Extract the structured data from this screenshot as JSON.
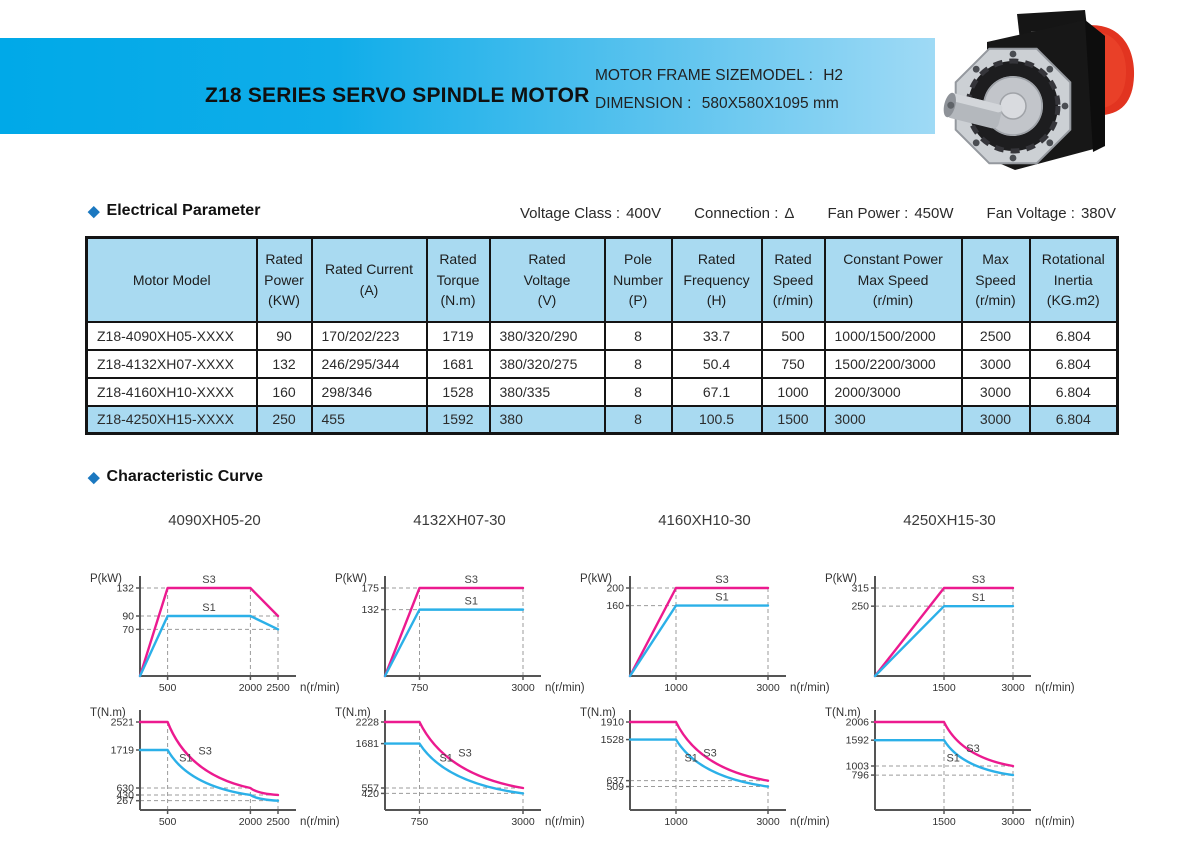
{
  "header": {
    "title": "Z18 SERIES SERVO SPINDLE MOTOR",
    "frame_label": "MOTOR FRAME SIZEMODEL :",
    "frame_value": "H2",
    "dimension_label": "DIMENSION :",
    "dimension_value": "580X580X1095 mm"
  },
  "electrical": {
    "section_title": "Electrical Parameter",
    "params": [
      {
        "label": "Voltage Class :",
        "value": "400V"
      },
      {
        "label": "Connection :",
        "value": "Δ"
      },
      {
        "label": "Fan Power :",
        "value": "450W"
      },
      {
        "label": "Fan Voltage :",
        "value": "380V"
      }
    ],
    "table": {
      "headers": [
        "Motor Model",
        "Rated\nPower\n(KW)",
        "Rated  Current\n(A)",
        "Rated\nTorque\n(N.m)",
        "Rated\nVoltage\n(V)",
        "Pole\nNumber\n(P)",
        "Rated\nFrequency\n(H)",
        "Rated\nSpeed\n(r/min)",
        "Constant Power\nMax Speed\n(r/min)",
        "Max\nSpeed\n(r/min)",
        "Rotational\nInertia\n(KG.m2)"
      ],
      "rows": [
        [
          "Z18-4090XH05-XXXX",
          "90",
          "170/202/223",
          "1719",
          "380/320/290",
          "8",
          "33.7",
          "500",
          "1000/1500/2000",
          "2500",
          "6.804"
        ],
        [
          "Z18-4132XH07-XXXX",
          "132",
          "246/295/344",
          "1681",
          "380/320/275",
          "8",
          "50.4",
          "750",
          "1500/2200/3000",
          "3000",
          "6.804"
        ],
        [
          "Z18-4160XH10-XXXX",
          "160",
          "298/346",
          "1528",
          "380/335",
          "8",
          "67.1",
          "1000",
          "2000/3000",
          "3000",
          "6.804"
        ],
        [
          "Z18-4250XH15-XXXX",
          "250",
          "455",
          "1592",
          "380",
          "8",
          "100.5",
          "1500",
          "3000",
          "3000",
          "6.804"
        ]
      ],
      "highlight_row_index": 3
    }
  },
  "curves": {
    "section_title": "Characteristic Curve",
    "models": [
      "4090XH05-20",
      "4132XH07-30",
      "4160XH10-30",
      "4250XH15-30"
    ]
  },
  "colors": {
    "magenta": "#ec1a8f",
    "cyan": "#2bb0e8",
    "band_blue": "#00a9e8",
    "table_blue": "#a9daf1",
    "diamond_blue": "#1b78c0",
    "motor_red": "#e23420"
  },
  "chart_data": [
    {
      "id": "power-4090",
      "type": "line",
      "model": "4090XH05-20",
      "ylabel": "P(kW)",
      "xlabel": "n(r/min)",
      "yticks": [
        132,
        90,
        70
      ],
      "xticks": [
        500,
        2000,
        2500
      ],
      "ymax": 132,
      "xmax": 2500,
      "grid_h": [
        {
          "y": 132,
          "x2": 2000
        },
        {
          "y": 90,
          "x2": 2500
        },
        {
          "y": 70,
          "x2": 2500
        }
      ],
      "grid_v": [
        {
          "x": 500,
          "y2": 132
        },
        {
          "x": 2000,
          "y2": 132
        },
        {
          "x": 2500,
          "y2": 90
        }
      ],
      "series": [
        {
          "name": "S3",
          "color": "magenta",
          "points": [
            [
              0,
              0
            ],
            [
              500,
              132
            ],
            [
              2000,
              132
            ],
            [
              2500,
              90
            ]
          ],
          "curved": [],
          "label_at": [
            1250,
            132
          ]
        },
        {
          "name": "S1",
          "color": "cyan",
          "points": [
            [
              0,
              0
            ],
            [
              500,
              90
            ],
            [
              2000,
              90
            ],
            [
              2500,
              70
            ]
          ],
          "curved": [],
          "label_at": [
            1250,
            90
          ]
        }
      ]
    },
    {
      "id": "power-4132",
      "type": "line",
      "model": "4132XH07-30",
      "ylabel": "P(kW)",
      "xlabel": "n(r/min)",
      "yticks": [
        175,
        132
      ],
      "xticks": [
        750,
        3000
      ],
      "ymax": 175,
      "xmax": 3000,
      "grid_h": [
        {
          "y": 175,
          "x2": 3000
        },
        {
          "y": 132,
          "x2": 3000
        }
      ],
      "grid_v": [
        {
          "x": 750,
          "y2": 175
        },
        {
          "x": 3000,
          "y2": 175
        }
      ],
      "series": [
        {
          "name": "S3",
          "color": "magenta",
          "points": [
            [
              0,
              0
            ],
            [
              750,
              175
            ],
            [
              3000,
              175
            ]
          ],
          "curved": [],
          "label_at": [
            1875,
            175
          ]
        },
        {
          "name": "S1",
          "color": "cyan",
          "points": [
            [
              0,
              0
            ],
            [
              750,
              132
            ],
            [
              3000,
              132
            ]
          ],
          "curved": [],
          "label_at": [
            1875,
            132
          ]
        }
      ]
    },
    {
      "id": "power-4160",
      "type": "line",
      "model": "4160XH10-30",
      "ylabel": "P(kW)",
      "xlabel": "n(r/min)",
      "yticks": [
        200,
        160
      ],
      "xticks": [
        1000,
        3000
      ],
      "ymax": 200,
      "xmax": 3000,
      "grid_h": [
        {
          "y": 200,
          "x2": 3000
        },
        {
          "y": 160,
          "x2": 3000
        }
      ],
      "grid_v": [
        {
          "x": 1000,
          "y2": 200
        },
        {
          "x": 3000,
          "y2": 200
        }
      ],
      "series": [
        {
          "name": "S3",
          "color": "magenta",
          "points": [
            [
              0,
              0
            ],
            [
              1000,
              200
            ],
            [
              3000,
              200
            ]
          ],
          "curved": [],
          "label_at": [
            2000,
            200
          ]
        },
        {
          "name": "S1",
          "color": "cyan",
          "points": [
            [
              0,
              0
            ],
            [
              1000,
              160
            ],
            [
              3000,
              160
            ]
          ],
          "curved": [],
          "label_at": [
            2000,
            160
          ]
        }
      ]
    },
    {
      "id": "power-4250",
      "type": "line",
      "model": "4250XH15-30",
      "ylabel": "P(kW)",
      "xlabel": "n(r/min)",
      "yticks": [
        315,
        250
      ],
      "xticks": [
        1500,
        3000
      ],
      "ymax": 315,
      "xmax": 3000,
      "grid_h": [
        {
          "y": 315,
          "x2": 3000
        },
        {
          "y": 250,
          "x2": 3000
        }
      ],
      "grid_v": [
        {
          "x": 1500,
          "y2": 315
        },
        {
          "x": 3000,
          "y2": 315
        }
      ],
      "series": [
        {
          "name": "S3",
          "color": "magenta",
          "points": [
            [
              0,
              0
            ],
            [
              1500,
              315
            ],
            [
              3000,
              315
            ]
          ],
          "curved": [],
          "label_at": [
            2250,
            315
          ]
        },
        {
          "name": "S1",
          "color": "cyan",
          "points": [
            [
              0,
              0
            ],
            [
              1500,
              250
            ],
            [
              3000,
              250
            ]
          ],
          "curved": [],
          "label_at": [
            2250,
            250
          ]
        }
      ]
    },
    {
      "id": "torque-4090",
      "type": "line",
      "model": "4090XH05-20",
      "ylabel": "T(N.m)",
      "xlabel": "n(r/min)",
      "yticks": [
        2521,
        1719,
        630,
        430,
        267
      ],
      "xticks": [
        500,
        2000,
        2500
      ],
      "ymax": 2521,
      "xmax": 2500,
      "grid_h": [
        {
          "y": 630,
          "x2": 2000
        },
        {
          "y": 430,
          "x2": 2500
        },
        {
          "y": 267,
          "x2": 2500
        }
      ],
      "grid_v": [
        {
          "x": 500,
          "y2": 2521
        },
        {
          "x": 2000,
          "y2": 630
        },
        {
          "x": 2500,
          "y2": 430
        }
      ],
      "series": [
        {
          "name": "S3",
          "color": "magenta",
          "points": [
            [
              0,
              2521
            ],
            [
              500,
              2521
            ],
            [
              2000,
              630
            ],
            [
              2500,
              430
            ]
          ],
          "curved": [
            1,
            2
          ],
          "label_at": [
            1180,
            1450
          ]
        },
        {
          "name": "S1",
          "color": "cyan",
          "points": [
            [
              0,
              1719
            ],
            [
              500,
              1719
            ],
            [
              2000,
              430
            ],
            [
              2500,
              267
            ]
          ],
          "curved": [
            1,
            2
          ],
          "label_at": [
            830,
            1250
          ]
        }
      ]
    },
    {
      "id": "torque-4132",
      "type": "line",
      "model": "4132XH07-30",
      "ylabel": "T(N.m)",
      "xlabel": "n(r/min)",
      "yticks": [
        2228,
        1681,
        557,
        420
      ],
      "xticks": [
        750,
        3000
      ],
      "ymax": 2228,
      "xmax": 3000,
      "grid_h": [
        {
          "y": 557,
          "x2": 3000
        },
        {
          "y": 420,
          "x2": 3000
        }
      ],
      "grid_v": [
        {
          "x": 750,
          "y2": 2228
        },
        {
          "x": 3000,
          "y2": 557
        }
      ],
      "series": [
        {
          "name": "S3",
          "color": "magenta",
          "points": [
            [
              0,
              2228
            ],
            [
              750,
              2228
            ],
            [
              3000,
              557
            ]
          ],
          "curved": [
            1
          ],
          "label_at": [
            1740,
            1230
          ]
        },
        {
          "name": "S1",
          "color": "cyan",
          "points": [
            [
              0,
              1681
            ],
            [
              750,
              1681
            ],
            [
              3000,
              420
            ]
          ],
          "curved": [
            1
          ],
          "label_at": [
            1330,
            1100
          ]
        }
      ]
    },
    {
      "id": "torque-4160",
      "type": "line",
      "model": "4160XH10-30",
      "ylabel": "T(N.m)",
      "xlabel": "n(r/min)",
      "yticks": [
        1910,
        1528,
        637,
        509
      ],
      "xticks": [
        1000,
        3000
      ],
      "ymax": 1910,
      "xmax": 3000,
      "grid_h": [
        {
          "y": 637,
          "x2": 3000
        },
        {
          "y": 509,
          "x2": 3000
        }
      ],
      "grid_v": [
        {
          "x": 1000,
          "y2": 1910
        },
        {
          "x": 3000,
          "y2": 637
        }
      ],
      "series": [
        {
          "name": "S3",
          "color": "magenta",
          "points": [
            [
              0,
              1910
            ],
            [
              1000,
              1910
            ],
            [
              3000,
              637
            ]
          ],
          "curved": [
            1
          ],
          "label_at": [
            1740,
            1055
          ]
        },
        {
          "name": "S1",
          "color": "cyan",
          "points": [
            [
              0,
              1528
            ],
            [
              1000,
              1528
            ],
            [
              3000,
              509
            ]
          ],
          "curved": [
            1
          ],
          "label_at": [
            1330,
            945
          ]
        }
      ]
    },
    {
      "id": "torque-4250",
      "type": "line",
      "model": "4250XH15-30",
      "ylabel": "T(N.m)",
      "xlabel": "n(r/min)",
      "yticks": [
        2006,
        1592,
        1003,
        796
      ],
      "xticks": [
        1500,
        3000
      ],
      "ymax": 2006,
      "xmax": 3000,
      "grid_h": [
        {
          "y": 1003,
          "x2": 3000
        },
        {
          "y": 796,
          "x2": 3000
        }
      ],
      "grid_v": [
        {
          "x": 1500,
          "y2": 2006
        },
        {
          "x": 3000,
          "y2": 1003
        }
      ],
      "series": [
        {
          "name": "S3",
          "color": "magenta",
          "points": [
            [
              0,
              2006
            ],
            [
              1500,
              2006
            ],
            [
              3000,
              1003
            ]
          ],
          "curved": [
            1
          ],
          "label_at": [
            2130,
            1210
          ]
        },
        {
          "name": "S1",
          "color": "cyan",
          "points": [
            [
              0,
              1592
            ],
            [
              1500,
              1592
            ],
            [
              3000,
              796
            ]
          ],
          "curved": [
            1
          ],
          "label_at": [
            1700,
            990
          ]
        }
      ]
    }
  ]
}
